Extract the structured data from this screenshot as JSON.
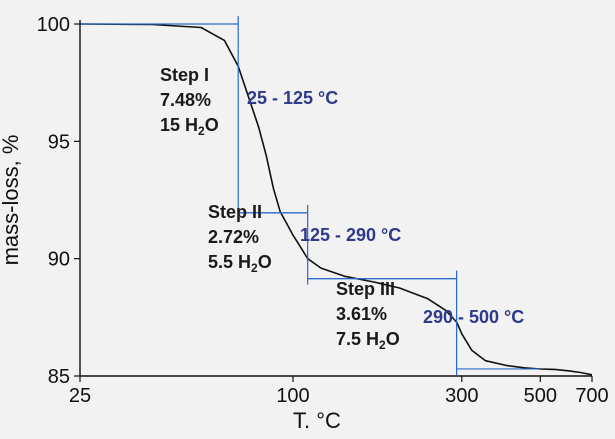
{
  "chart_data": {
    "type": "line",
    "xlabel": "T. °C",
    "ylabel": "mass-loss, %",
    "x_scale": "log",
    "xlim": [
      25,
      700
    ],
    "ylim": [
      85,
      100
    ],
    "x_ticks": [
      25,
      100,
      300,
      500,
      700
    ],
    "y_ticks": [
      85,
      90,
      95,
      100
    ],
    "grid": false,
    "series": [
      {
        "x": [
          25,
          40,
          55,
          64,
          70,
          76,
          80,
          84,
          88,
          92,
          96,
          100,
          104,
          110,
          120,
          140,
          170,
          200,
          240,
          270,
          290,
          300,
          320,
          350,
          400,
          450,
          500,
          550,
          600,
          650,
          700
        ],
        "y": [
          100,
          99.98,
          99.85,
          99.3,
          98.2,
          96.6,
          95.6,
          94.4,
          93.0,
          92.0,
          91.5,
          91.0,
          90.6,
          90.0,
          89.6,
          89.25,
          89.0,
          88.75,
          88.3,
          87.8,
          87.3,
          86.8,
          86.1,
          85.65,
          85.45,
          85.35,
          85.3,
          85.28,
          85.22,
          85.15,
          85.05
        ]
      }
    ],
    "steps": [
      {
        "name": "Step I",
        "percent": "7.48%",
        "water": "15",
        "range": "25 - 125 °C",
        "vline_x": 70,
        "top_y": 100,
        "bottom_y": 91.95,
        "top_x_range": [
          25,
          70
        ],
        "bottom_x_range": [
          70,
          110
        ]
      },
      {
        "name": "Step II",
        "percent": "2.72%",
        "water": "5.5",
        "range": "125 - 290 °C",
        "vline_x": 110,
        "top_y": 91.95,
        "bottom_y": 89.15,
        "top_x_range": [
          70,
          110
        ],
        "bottom_x_range": [
          110,
          290
        ]
      },
      {
        "name": "Step III",
        "percent": "3.61%",
        "water": "7.5",
        "range": "290 - 500 °C",
        "vline_x": 290,
        "top_y": 89.15,
        "bottom_y": 85.3,
        "top_x_range": [
          110,
          290
        ],
        "bottom_x_range": [
          290,
          500
        ]
      }
    ],
    "colors": {
      "curve": "#111111",
      "step_lines": "#2a6ad0",
      "range_text": "#2e3a8c",
      "label_text": "#1a1a1a",
      "axis": "#111111"
    }
  }
}
